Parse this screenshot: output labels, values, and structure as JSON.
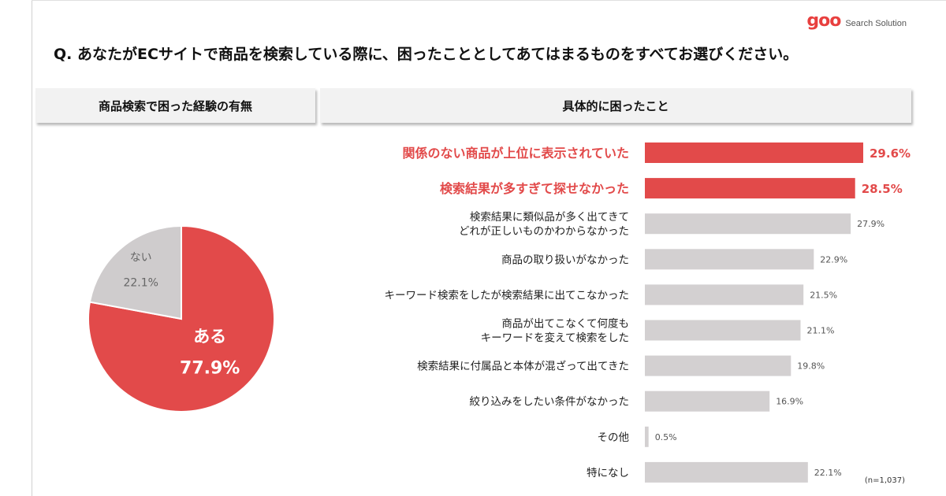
{
  "brand": {
    "logo_text": "goo",
    "tagline": "Search Solution"
  },
  "question": "Q. あなたがECサイトで商品を検索している際に、困ったこととしてあてはまるものをすべてお選びください。",
  "panels": {
    "left_title": "商品検索で困った経験の有無",
    "right_title": "具体的に困ったこと"
  },
  "sample_note": "(n=1,037)",
  "colors": {
    "accent": "#e24a4a",
    "neutral_bar": "#d3d0d1",
    "pie_other": "#cfcccd"
  },
  "chart_data": [
    {
      "type": "pie",
      "title": "",
      "slices": [
        {
          "label": "ある",
          "value": 77.9,
          "display": "77.9%",
          "color": "#e24a4a"
        },
        {
          "label": "ない",
          "value": 22.1,
          "display": "22.1%",
          "color": "#cfcccd"
        }
      ]
    },
    {
      "type": "bar",
      "orientation": "horizontal",
      "title": "",
      "xlim": [
        0,
        30
      ],
      "grid": false,
      "items": [
        {
          "label": [
            "関係のない商品が上位に表示されていた"
          ],
          "value": 29.6,
          "display": "29.6%",
          "highlight": true
        },
        {
          "label": [
            "検索結果が多すぎて探せなかった"
          ],
          "value": 28.5,
          "display": "28.5%",
          "highlight": true
        },
        {
          "label": [
            "検索結果に類似品が多く出てきて",
            "どれが正しいものかわからなかった"
          ],
          "value": 27.9,
          "display": "27.9%",
          "highlight": false
        },
        {
          "label": [
            "商品の取り扱いがなかった"
          ],
          "value": 22.9,
          "display": "22.9%",
          "highlight": false
        },
        {
          "label": [
            "キーワード検索をしたが検索結果に出てこなかった"
          ],
          "value": 21.5,
          "display": "21.5%",
          "highlight": false
        },
        {
          "label": [
            "商品が出てこなくて何度も",
            "キーワードを変えて検索をした"
          ],
          "value": 21.1,
          "display": "21.1%",
          "highlight": false
        },
        {
          "label": [
            "検索結果に付属品と本体が混ざって出てきた"
          ],
          "value": 19.8,
          "display": "19.8%",
          "highlight": false
        },
        {
          "label": [
            "絞り込みをしたい条件がなかった"
          ],
          "value": 16.9,
          "display": "16.9%",
          "highlight": false
        },
        {
          "label": [
            "その他"
          ],
          "value": 0.5,
          "display": "0.5%",
          "highlight": false
        },
        {
          "label": [
            "特になし"
          ],
          "value": 22.1,
          "display": "22.1%",
          "highlight": false
        }
      ]
    }
  ]
}
